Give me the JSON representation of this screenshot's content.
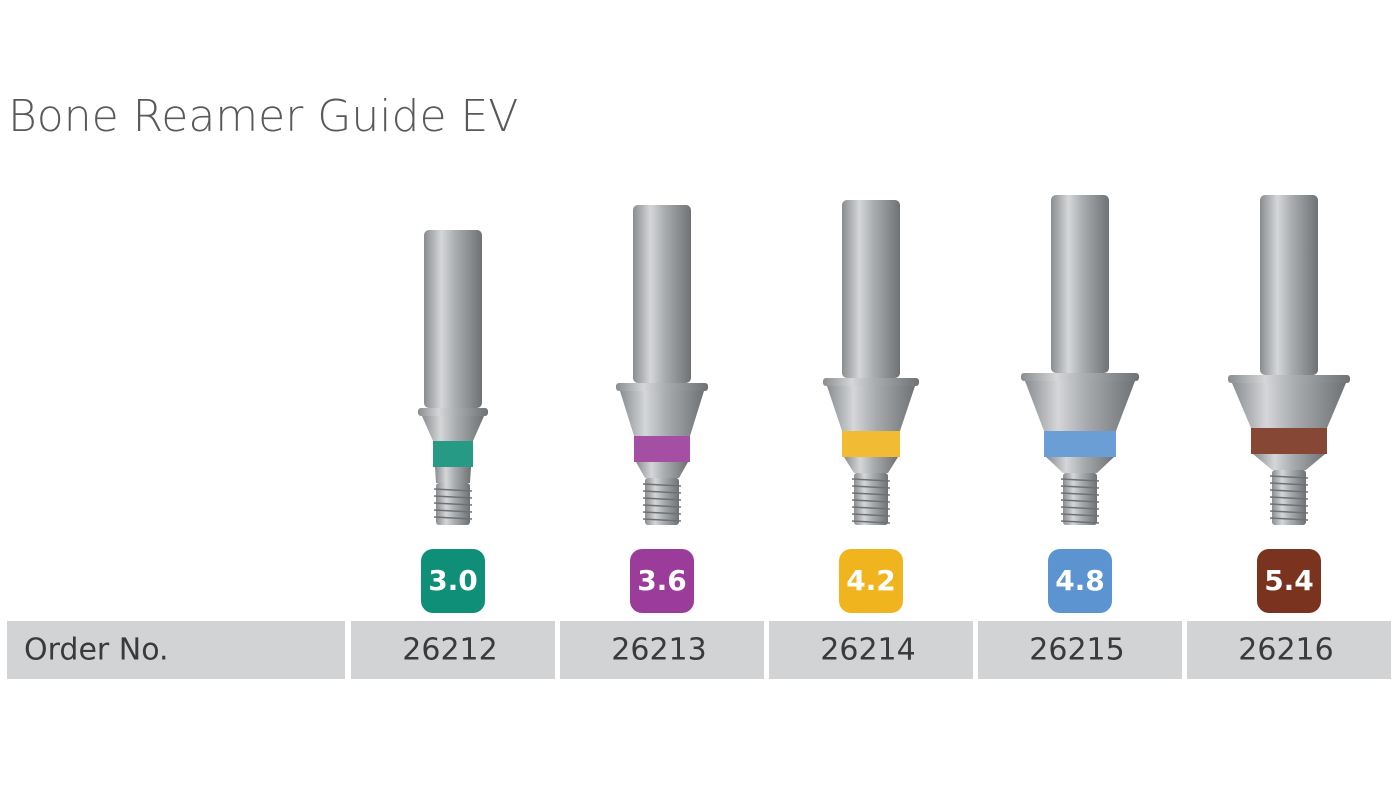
{
  "title": "Bone Reamer Guide EV",
  "table": {
    "row_header": "Order No.",
    "products": [
      {
        "size": "3.0",
        "color": "#0f8f78",
        "order_no": "26212"
      },
      {
        "size": "3.6",
        "color": "#9b3c9a",
        "order_no": "26213"
      },
      {
        "size": "4.2",
        "color": "#f0b41e",
        "order_no": "26214"
      },
      {
        "size": "4.8",
        "color": "#5c93d1",
        "order_no": "26215"
      },
      {
        "size": "5.4",
        "color": "#7a331f",
        "order_no": "26216"
      }
    ]
  }
}
